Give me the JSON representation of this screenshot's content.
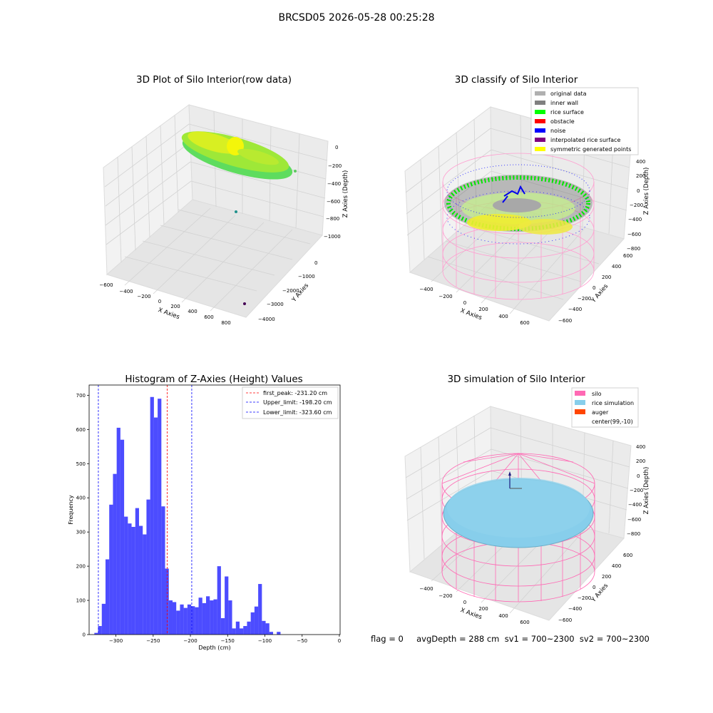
{
  "suptitle": "BRCSD05 2026-05-28 00:25:28",
  "plot1": {
    "title": "3D Plot of Silo Interior(row data)",
    "xlabel": "X Axies",
    "ylabel": "Y Axies",
    "zlabel": "Z Axies (Depth)",
    "xticks": [
      "−600",
      "−400",
      "−200",
      "0",
      "200",
      "400",
      "600",
      "800"
    ],
    "yticks": [
      "0",
      "−1000",
      "−2000",
      "−3000",
      "−4000"
    ],
    "zticks": [
      "0",
      "−200",
      "−400",
      "−600",
      "−800",
      "−1000"
    ]
  },
  "plot2": {
    "title": "3D classify of Silo Interior",
    "xlabel": "X Axies",
    "ylabel": "Y Axies",
    "zlabel": "Z Axies (Depth)",
    "xticks": [
      "−400",
      "−200",
      "0",
      "200",
      "400",
      "600"
    ],
    "yticks": [
      "600",
      "400",
      "200",
      "0",
      "−200",
      "−400",
      "−600"
    ],
    "zticks": [
      "400",
      "200",
      "0",
      "−200",
      "−400",
      "−600",
      "−800"
    ],
    "legend": [
      {
        "label": "original data",
        "color": "#b0b0b0"
      },
      {
        "label": "inner wall",
        "color": "#808080"
      },
      {
        "label": "rice surface",
        "color": "#00ff00"
      },
      {
        "label": "obstacle",
        "color": "#ff0000"
      },
      {
        "label": "noise",
        "color": "#0000ff"
      },
      {
        "label": "interpolated rice surface",
        "color": "#800080"
      },
      {
        "label": "symmetric generated points",
        "color": "#ffff00"
      }
    ]
  },
  "plot4": {
    "title": "3D simulation of Silo Interior",
    "xlabel": "X Axies",
    "ylabel": "Y Axies",
    "zlabel": "Z Axies (Depth)",
    "xticks": [
      "−400",
      "−200",
      "0",
      "200",
      "400",
      "600"
    ],
    "yticks": [
      "600",
      "400",
      "200",
      "0",
      "−200",
      "−400",
      "−600"
    ],
    "zticks": [
      "400",
      "200",
      "0",
      "−200",
      "−400",
      "−600",
      "−800"
    ],
    "legend": [
      {
        "label": "silo",
        "color": "#ff69b4"
      },
      {
        "label": "rice simulation",
        "color": "#87ceeb"
      },
      {
        "label": "auger",
        "color": "#ff4500"
      },
      {
        "label": "center(99,-10)",
        "color": "none"
      }
    ]
  },
  "footer": "flag = 0     avgDepth = 288 cm  sv1 = 700~2300  sv2 = 700~2300",
  "chart_data": [
    {
      "type": "bar",
      "title": "Histogram of Z-Axies (Height) Values",
      "xlabel": "Depth (cm)",
      "ylabel": "Frequency",
      "xlim": [
        -336,
        1
      ],
      "ylim": [
        0,
        730
      ],
      "bin_start": -329,
      "bin_width": 5,
      "values": [
        5,
        25,
        90,
        220,
        380,
        470,
        605,
        570,
        345,
        325,
        315,
        370,
        318,
        293,
        395,
        695,
        635,
        690,
        375,
        193,
        100,
        95,
        70,
        88,
        78,
        88,
        83,
        80,
        108,
        92,
        112,
        100,
        103,
        200,
        48,
        170,
        100,
        18,
        38,
        18,
        25,
        38,
        65,
        82,
        148,
        40,
        33,
        8,
        0,
        8
      ],
      "bar_color": "#0000ff",
      "xticks": [
        -300,
        -250,
        -200,
        -150,
        -100,
        -50,
        0
      ],
      "xtick_labels": [
        "−300",
        "−250",
        "−200",
        "−150",
        "−100",
        "−50",
        "0"
      ],
      "yticks": [
        0,
        100,
        200,
        300,
        400,
        500,
        600,
        700
      ],
      "vlines": [
        {
          "x": -231.2,
          "color": "#ff0000",
          "label": "first_peak: -231.20 cm"
        },
        {
          "x": -198.2,
          "color": "#0000ff",
          "label": "Upper_limit: -198.20 cm"
        },
        {
          "x": -323.6,
          "color": "#0000ff",
          "label": "Lower_limit: -323.60 cm"
        }
      ],
      "legend_position": "upper right"
    }
  ]
}
